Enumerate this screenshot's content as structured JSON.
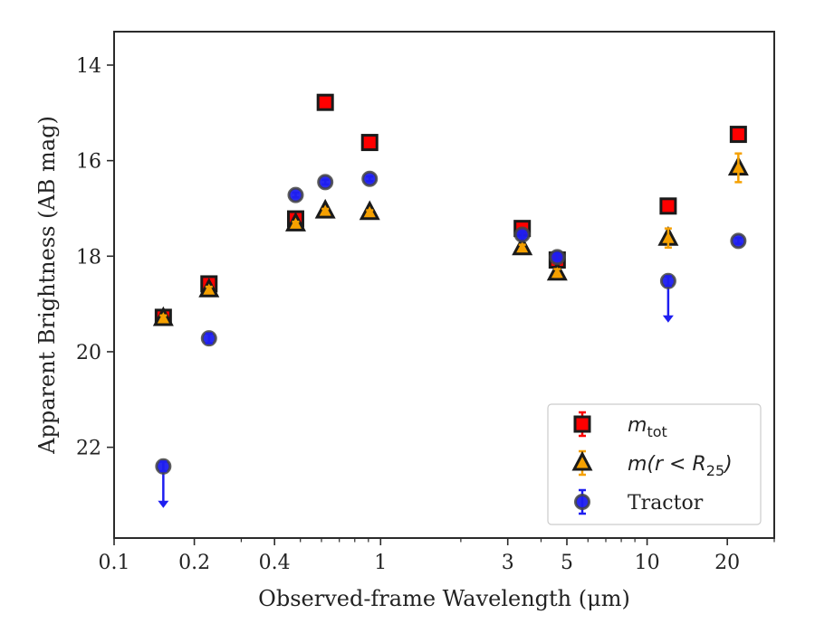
{
  "chart_data": {
    "type": "scatter",
    "xlabel": "Observed-frame Wavelength (μm)",
    "ylabel": "Apparent Brightness (AB mag)",
    "xscale": "log",
    "xlim": [
      0.1,
      30
    ],
    "ylim": [
      23.9,
      13.3
    ],
    "y_inverted": true,
    "x_ticks": [
      0.1,
      0.2,
      0.4,
      1,
      3,
      5,
      10,
      20
    ],
    "x_tick_labels": [
      "0.1",
      "0.2",
      "0.4",
      "1",
      "3",
      "5",
      "10",
      "20"
    ],
    "y_ticks": [
      14,
      16,
      18,
      20,
      22
    ],
    "y_tick_labels": [
      "14",
      "16",
      "18",
      "20",
      "22"
    ],
    "grid": false,
    "legend_position": "lower-right",
    "series": [
      {
        "name": "m_tot",
        "legend": {
          "main": "m",
          "sub": "tot",
          "after": ""
        },
        "marker": "square",
        "color": "#ff0000",
        "edge_color": "#1a1a1a",
        "points": [
          {
            "x": 0.153,
            "y": 19.28,
            "err": 0.06
          },
          {
            "x": 0.227,
            "y": 18.58,
            "err": 0.06
          },
          {
            "x": 0.48,
            "y": 17.22,
            "err": 0.04
          },
          {
            "x": 0.62,
            "y": 14.78,
            "err": 0.03
          },
          {
            "x": 0.91,
            "y": 15.62,
            "err": 0.03
          },
          {
            "x": 3.4,
            "y": 17.42,
            "err": 0.06
          },
          {
            "x": 4.6,
            "y": 18.08,
            "err": 0.08
          },
          {
            "x": 12.0,
            "y": 16.95,
            "err": 0.05
          },
          {
            "x": 22.0,
            "y": 15.45,
            "err": 0.05
          }
        ]
      },
      {
        "name": "m(r < R25)",
        "legend": {
          "main": "m(r < R",
          "sub": "25",
          "after": ")"
        },
        "marker": "triangle",
        "color": "#f5a000",
        "edge_color": "#1a1a1a",
        "points": [
          {
            "x": 0.153,
            "y": 19.3,
            "err": 0.06
          },
          {
            "x": 0.227,
            "y": 18.7,
            "err": 0.06
          },
          {
            "x": 0.48,
            "y": 17.32,
            "err": 0.04
          },
          {
            "x": 0.62,
            "y": 17.05,
            "err": 0.04
          },
          {
            "x": 0.91,
            "y": 17.08,
            "err": 0.04
          },
          {
            "x": 3.4,
            "y": 17.82,
            "err": 0.06
          },
          {
            "x": 4.6,
            "y": 18.35,
            "err": 0.08
          },
          {
            "x": 12.0,
            "y": 17.62,
            "err": 0.2
          },
          {
            "x": 22.0,
            "y": 16.15,
            "err": 0.3
          }
        ]
      },
      {
        "name": "Tractor",
        "legend": {
          "main": "Tractor",
          "sub": "",
          "after": ""
        },
        "marker": "circle",
        "color": "#1e1ef0",
        "edge_color": "#444444",
        "points": [
          {
            "x": 0.153,
            "y": 22.4,
            "err": 0.1,
            "upper_limit": true
          },
          {
            "x": 0.227,
            "y": 19.72,
            "err": 0.1
          },
          {
            "x": 0.48,
            "y": 16.72,
            "err": 0.05
          },
          {
            "x": 0.62,
            "y": 16.45,
            "err": 0.05
          },
          {
            "x": 0.91,
            "y": 16.38,
            "err": 0.05
          },
          {
            "x": 3.4,
            "y": 17.55,
            "err": 0.06
          },
          {
            "x": 4.6,
            "y": 18.02,
            "err": 0.06
          },
          {
            "x": 12.0,
            "y": 18.52,
            "err": 0.1,
            "upper_limit": true
          },
          {
            "x": 22.0,
            "y": 17.68,
            "err": 0.06
          }
        ]
      }
    ]
  }
}
